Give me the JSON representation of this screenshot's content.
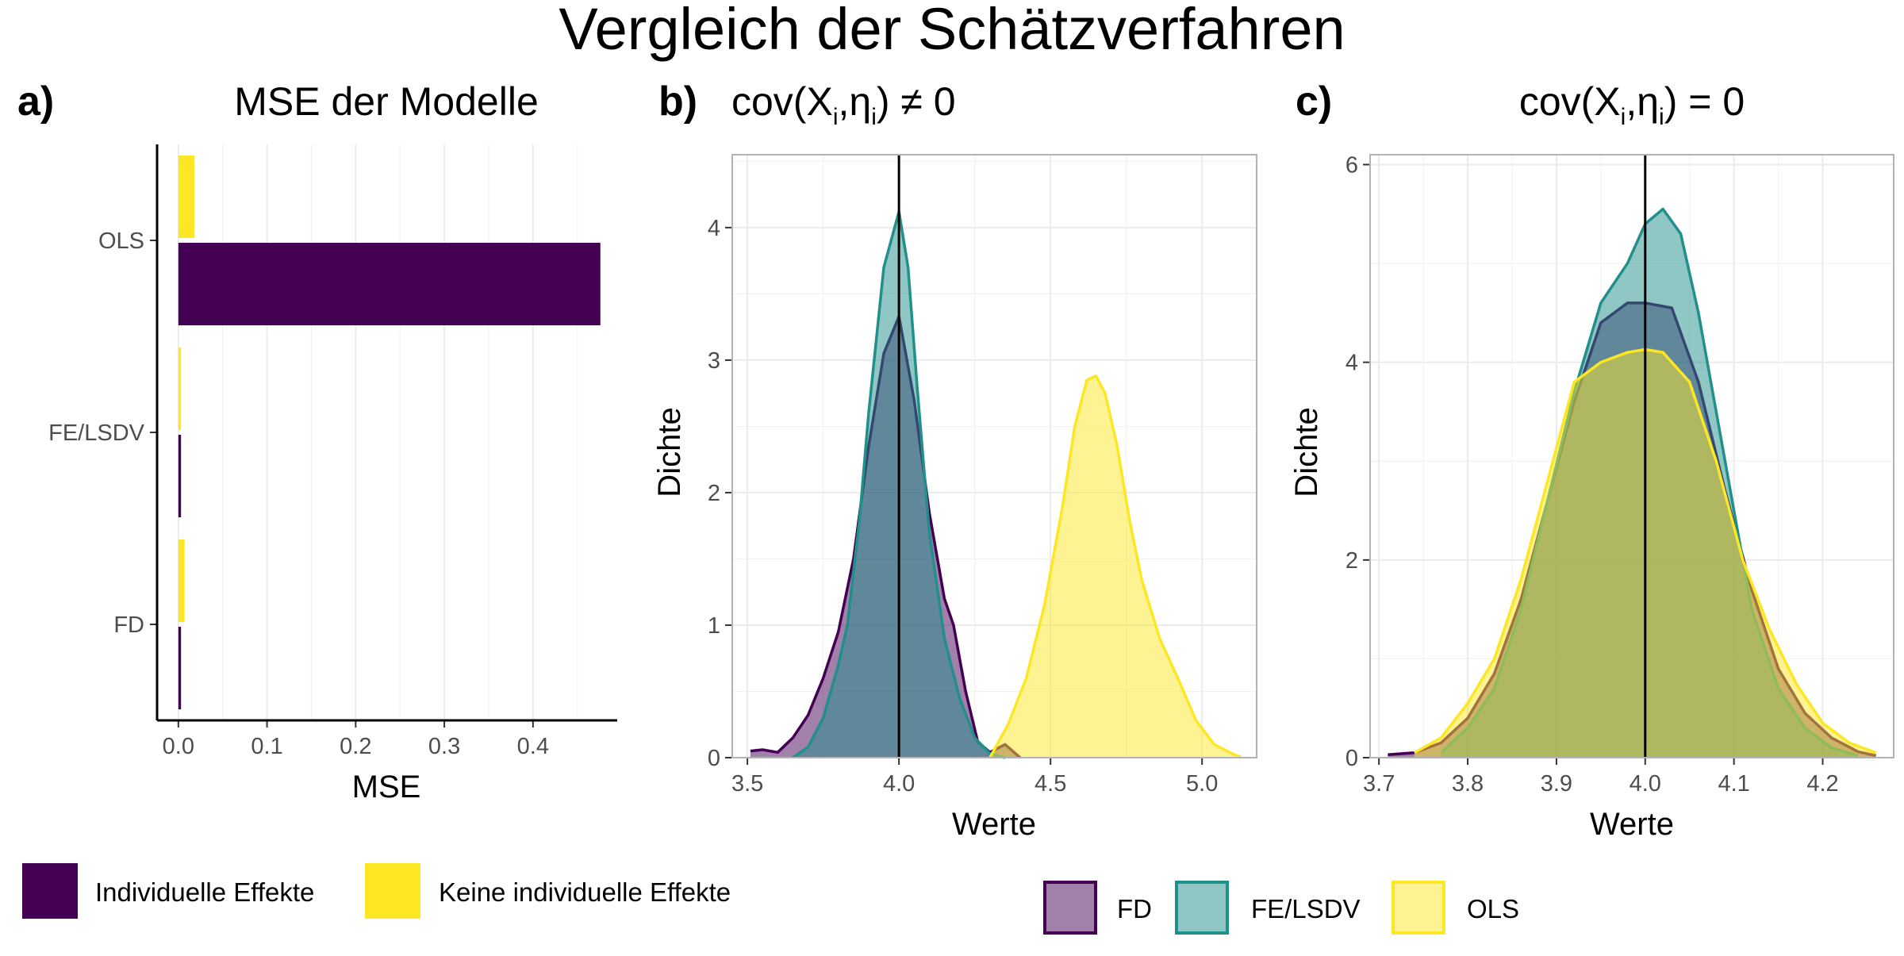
{
  "figure": {
    "title": "Vergleich der Schätzverfahren"
  },
  "chart_data": [
    {
      "tag": "a)",
      "type": "bar",
      "orientation": "horizontal",
      "title": "MSE der Modelle",
      "xlabel": "MSE",
      "ylabel": "",
      "categories": [
        "OLS",
        "FE/LSDV",
        "FD"
      ],
      "xlim": [
        -0.024,
        0.495
      ],
      "xticks": [
        0.0,
        0.1,
        0.2,
        0.3,
        0.4
      ],
      "xtick_labels": [
        "0.0",
        "0.1",
        "0.2",
        "0.3",
        "0.4"
      ],
      "grid": "vertical",
      "series": [
        {
          "name": "Keine individuelle Effekte",
          "color": "#FDE725",
          "values": [
            0.018,
            0.003,
            0.007
          ]
        },
        {
          "name": "Individuelle Effekte",
          "color": "#440154",
          "values": [
            0.476,
            0.003,
            0.003
          ]
        }
      ],
      "legend": {
        "position": "bottom-left",
        "items": [
          {
            "label": "Individuelle Effekte",
            "color": "#440154"
          },
          {
            "label": "Keine individuelle Effekte",
            "color": "#FDE725"
          }
        ]
      }
    },
    {
      "tag": "b)",
      "type": "area",
      "subtype": "density",
      "title_main": "cov(X",
      "title_sub1": "i",
      "title_mid": ",η",
      "title_sub2": "i",
      "title_end": ") ≠ 0",
      "xlabel": "Werte",
      "ylabel": "Dichte",
      "xlim": [
        3.45,
        5.18
      ],
      "ylim": [
        0,
        4.55
      ],
      "xticks": [
        3.5,
        4.0,
        4.5,
        5.0
      ],
      "xtick_labels": [
        "3.5",
        "4.0",
        "4.5",
        "5.0"
      ],
      "yticks": [
        0,
        1,
        2,
        3,
        4
      ],
      "ytick_labels": [
        "0",
        "1",
        "2",
        "3",
        "4"
      ],
      "vline": 4.0,
      "series": [
        {
          "name": "FD",
          "fill": "#440154",
          "stroke": "#440154",
          "x": [
            3.51,
            3.55,
            3.6,
            3.65,
            3.7,
            3.75,
            3.8,
            3.85,
            3.9,
            3.95,
            4.0,
            4.05,
            4.1,
            4.15,
            4.18,
            4.22,
            4.26,
            4.3,
            4.35,
            4.4
          ],
          "y": [
            0.05,
            0.06,
            0.04,
            0.15,
            0.32,
            0.6,
            0.95,
            1.5,
            2.35,
            3.05,
            3.33,
            2.7,
            1.85,
            1.2,
            1.0,
            0.5,
            0.12,
            0.04,
            0.1,
            0.0
          ]
        },
        {
          "name": "FE/LSDV",
          "fill": "#21908C",
          "stroke": "#21908C",
          "x": [
            3.65,
            3.7,
            3.75,
            3.8,
            3.83,
            3.87,
            3.9,
            3.95,
            4.0,
            4.03,
            4.06,
            4.1,
            4.15,
            4.2,
            4.25,
            4.3,
            4.35
          ],
          "y": [
            0.0,
            0.08,
            0.3,
            0.7,
            1.0,
            1.8,
            2.6,
            3.7,
            4.12,
            3.7,
            2.8,
            1.7,
            0.9,
            0.45,
            0.15,
            0.03,
            0.0
          ]
        },
        {
          "name": "OLS",
          "fill": "#FDE725",
          "stroke": "#FDE725",
          "x": [
            4.3,
            4.36,
            4.42,
            4.48,
            4.54,
            4.58,
            4.62,
            4.65,
            4.68,
            4.72,
            4.76,
            4.8,
            4.86,
            4.92,
            4.98,
            5.04,
            5.1,
            5.13
          ],
          "y": [
            0.0,
            0.25,
            0.6,
            1.15,
            1.9,
            2.5,
            2.85,
            2.88,
            2.75,
            2.35,
            1.8,
            1.35,
            0.9,
            0.6,
            0.28,
            0.1,
            0.03,
            0.0
          ]
        }
      ],
      "legend": {
        "position": "bottom",
        "items": [
          {
            "label": "FD",
            "fill": "#440154",
            "stroke": "#440154"
          },
          {
            "label": "FE/LSDV",
            "fill": "#21908C",
            "stroke": "#21908C"
          },
          {
            "label": "OLS",
            "fill": "#FDE725",
            "stroke": "#FDE725"
          }
        ]
      }
    },
    {
      "tag": "c)",
      "type": "area",
      "subtype": "density",
      "title_main": "cov(X",
      "title_sub1": "i",
      "title_mid": ",η",
      "title_sub2": "i",
      "title_end": ") = 0",
      "xlabel": "Werte",
      "ylabel": "Dichte",
      "xlim": [
        3.69,
        4.28
      ],
      "ylim": [
        0,
        6.1
      ],
      "xticks": [
        3.7,
        3.8,
        3.9,
        4.0,
        4.1,
        4.2
      ],
      "xtick_labels": [
        "3.7",
        "3.8",
        "3.9",
        "4.0",
        "4.1",
        "4.2"
      ],
      "yticks": [
        0,
        2,
        4,
        6
      ],
      "ytick_labels": [
        "0",
        "2",
        "4",
        "6"
      ],
      "vline": 4.0,
      "series": [
        {
          "name": "FD",
          "fill": "#440154",
          "stroke": "#440154",
          "x": [
            3.71,
            3.74,
            3.77,
            3.8,
            3.83,
            3.86,
            3.89,
            3.92,
            3.95,
            3.98,
            4.0,
            4.03,
            4.06,
            4.09,
            4.12,
            4.15,
            4.18,
            4.21,
            4.24,
            4.26
          ],
          "y": [
            0.03,
            0.05,
            0.15,
            0.4,
            0.85,
            1.6,
            2.6,
            3.6,
            4.4,
            4.6,
            4.6,
            4.55,
            3.8,
            2.7,
            1.7,
            0.9,
            0.45,
            0.2,
            0.06,
            0.02
          ]
        },
        {
          "name": "FE/LSDV",
          "fill": "#21908C",
          "stroke": "#21908C",
          "x": [
            3.77,
            3.8,
            3.83,
            3.86,
            3.89,
            3.92,
            3.95,
            3.98,
            4.0,
            4.02,
            4.04,
            4.06,
            4.09,
            4.12,
            4.15,
            4.18,
            4.21,
            4.24
          ],
          "y": [
            0.05,
            0.3,
            0.7,
            1.5,
            2.6,
            3.7,
            4.6,
            5.0,
            5.4,
            5.55,
            5.3,
            4.5,
            3.0,
            1.5,
            0.7,
            0.3,
            0.1,
            0.02
          ]
        },
        {
          "name": "OLS",
          "fill": "#FDE725",
          "stroke": "#FDE725",
          "x": [
            3.74,
            3.77,
            3.8,
            3.83,
            3.86,
            3.89,
            3.92,
            3.95,
            3.98,
            4.0,
            4.02,
            4.05,
            4.08,
            4.11,
            4.14,
            4.17,
            4.2,
            4.23,
            4.26
          ],
          "y": [
            0.05,
            0.2,
            0.55,
            1.0,
            1.8,
            2.8,
            3.8,
            4.0,
            4.1,
            4.13,
            4.1,
            3.8,
            3.0,
            2.0,
            1.3,
            0.75,
            0.35,
            0.15,
            0.05
          ]
        }
      ]
    }
  ]
}
